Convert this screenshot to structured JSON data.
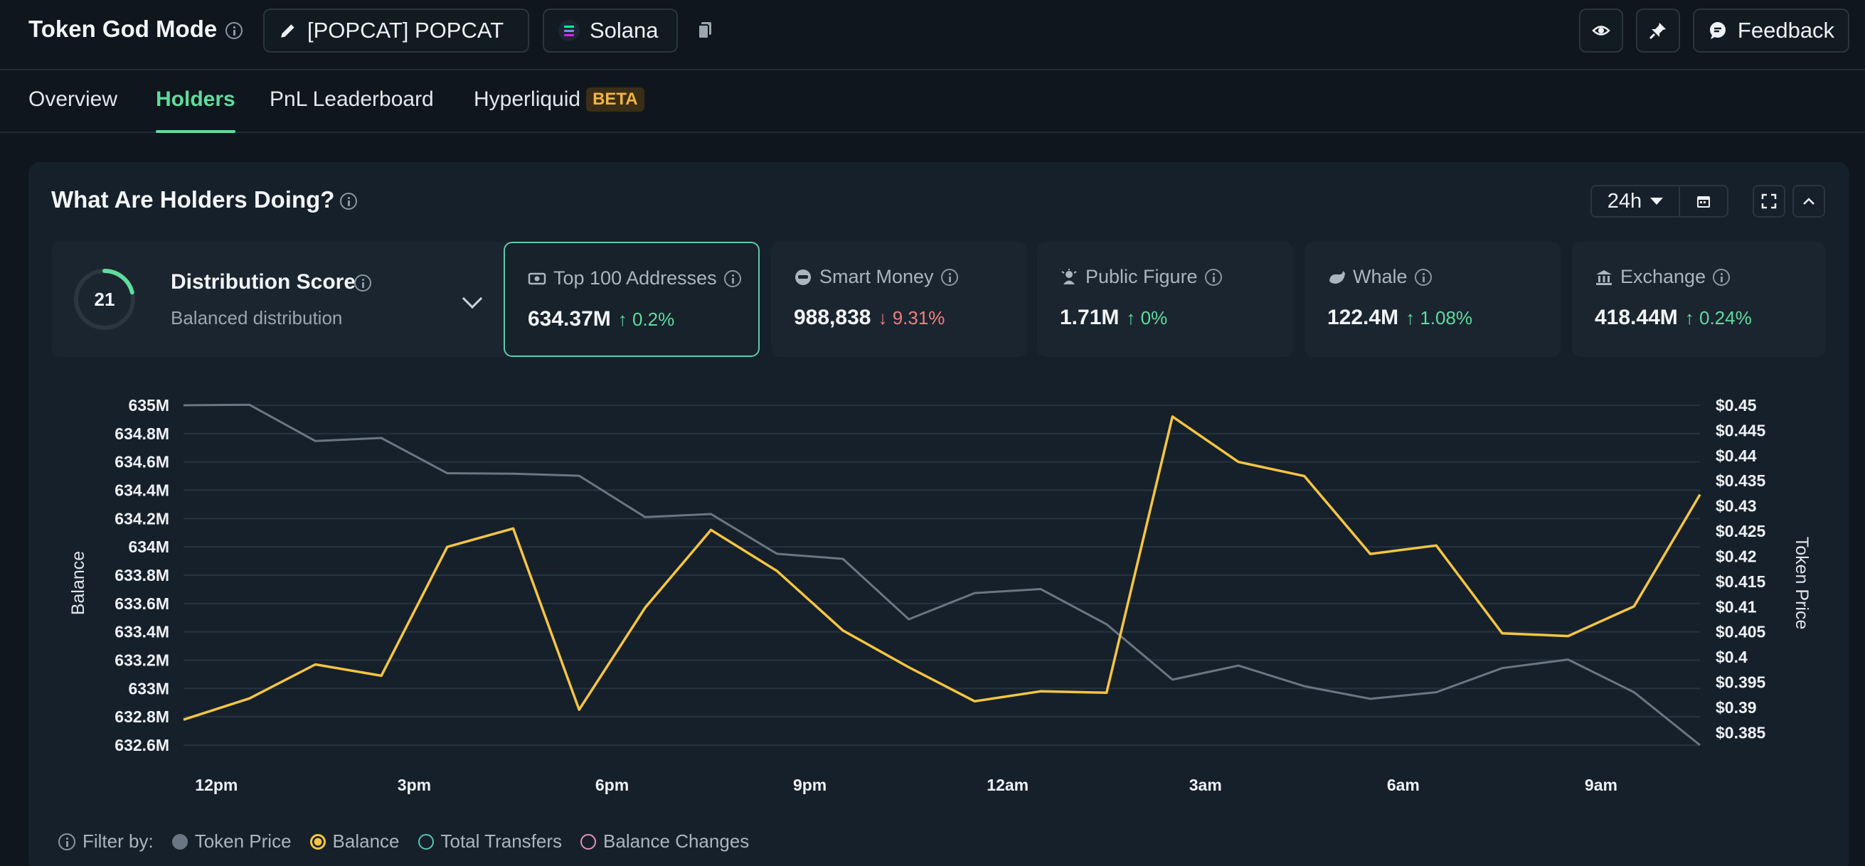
{
  "header": {
    "title": "Token God Mode",
    "token_label": "[POPCAT] POPCAT",
    "chain_label": "Solana",
    "feedback_label": "Feedback"
  },
  "tabs": [
    {
      "label": "Overview"
    },
    {
      "label": "Holders"
    },
    {
      "label": "PnL Leaderboard"
    },
    {
      "label": "Hyperliquid",
      "badge": "BETA"
    }
  ],
  "panel": {
    "title": "What Are Holders Doing?",
    "range": "24h"
  },
  "distribution": {
    "score": "21",
    "title": "Distribution Score",
    "subtitle": "Balanced distribution"
  },
  "cards": [
    {
      "label": "Top 100 Addresses",
      "value": "634.37M",
      "change": "0.2%",
      "direction": "up"
    },
    {
      "label": "Smart Money",
      "value": "988,838",
      "change": "9.31%",
      "direction": "down"
    },
    {
      "label": "Public Figure",
      "value": "1.71M",
      "change": "0%",
      "direction": "up"
    },
    {
      "label": "Whale",
      "value": "122.4M",
      "change": "1.08%",
      "direction": "up"
    },
    {
      "label": "Exchange",
      "value": "418.44M",
      "change": "0.24%",
      "direction": "up"
    }
  ],
  "legend": {
    "filter_label": "Filter by:",
    "items": [
      {
        "label": "Token Price",
        "color": "#6b7684",
        "style": "filled"
      },
      {
        "label": "Balance",
        "color": "#f5c542",
        "style": "ring-filled"
      },
      {
        "label": "Total Transfers",
        "color": "#4fc7b4",
        "style": "ring"
      },
      {
        "label": "Balance Changes",
        "color": "#e98fc0",
        "style": "ring"
      }
    ]
  },
  "colors": {
    "accent": "#5fdc9c",
    "balance_line": "#f5c542",
    "price_line": "#6b7684",
    "negative": "#f07f7f"
  },
  "chart_data": {
    "type": "line",
    "ylabel_left": "Balance",
    "ylabel_right": "Token Price",
    "left_ticks": [
      "635M",
      "634.8M",
      "634.6M",
      "634.4M",
      "634.2M",
      "634M",
      "633.8M",
      "633.6M",
      "633.4M",
      "633.2M",
      "633M",
      "632.8M",
      "632.6M"
    ],
    "right_ticks": [
      "$0.45",
      "$0.445",
      "$0.44",
      "$0.435",
      "$0.43",
      "$0.425",
      "$0.42",
      "$0.415",
      "$0.41",
      "$0.405",
      "$0.4",
      "$0.395",
      "$0.39",
      "$0.385"
    ],
    "x_ticks": [
      "12pm",
      "3pm",
      "6pm",
      "9pm",
      "12am",
      "3am",
      "6am",
      "9am"
    ],
    "left_ylim": [
      632.6,
      635.0
    ],
    "right_ylim": [
      0.3825,
      0.45
    ],
    "x_count": 24,
    "series": [
      {
        "name": "Token Price",
        "axis": "right",
        "color": "#6b7684",
        "values": [
          0.45,
          0.4501,
          0.4429,
          0.4435,
          0.4365,
          0.4364,
          0.436,
          0.4278,
          0.4284,
          0.4205,
          0.4195,
          0.4075,
          0.4127,
          0.4135,
          0.4065,
          0.3955,
          0.3983,
          0.3942,
          0.3917,
          0.393,
          0.3978,
          0.3995,
          0.393,
          0.3825
        ]
      },
      {
        "name": "Balance",
        "axis": "left",
        "color": "#f5c542",
        "values": [
          632.78,
          632.93,
          633.17,
          633.09,
          634.0,
          634.13,
          632.85,
          633.57,
          634.12,
          633.83,
          633.41,
          633.15,
          632.91,
          632.98,
          632.97,
          634.92,
          634.6,
          634.5,
          633.95,
          634.01,
          633.39,
          633.37,
          633.58,
          634.37
        ]
      }
    ]
  }
}
